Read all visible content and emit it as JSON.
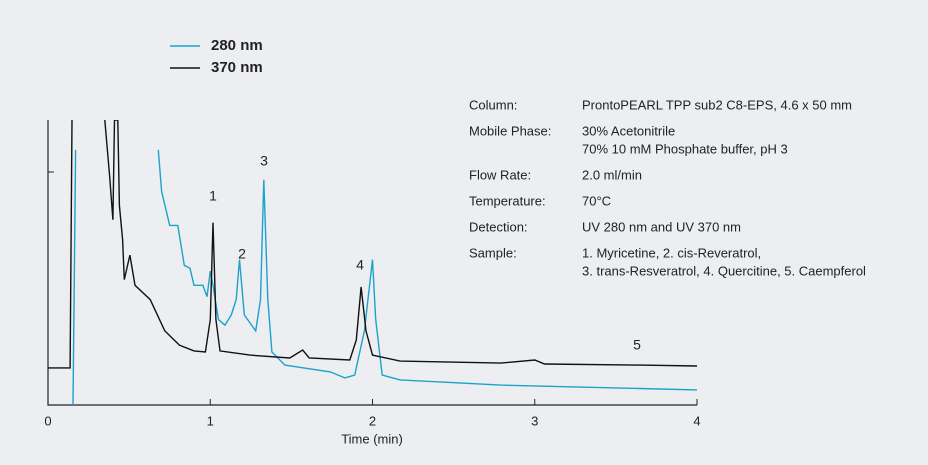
{
  "chart_data": {
    "type": "line",
    "x_label": "Time (min)",
    "xlim": [
      0,
      4
    ],
    "xticks": [
      0,
      1,
      2,
      3,
      4
    ],
    "ylim": [
      0,
      100
    ],
    "series": [
      {
        "name": "280 nm",
        "color": "#1ba3c9",
        "x": [
          0.154,
          0.17,
          null,
          0.68,
          0.7,
          0.75,
          0.8,
          0.84,
          0.875,
          0.9,
          0.955,
          0.98,
          1.0,
          1.017,
          1.05,
          1.09,
          1.13,
          1.16,
          1.18,
          1.21,
          1.28,
          1.31,
          1.33,
          1.355,
          1.38,
          1.46,
          1.74,
          1.83,
          1.89,
          1.95,
          2.0,
          2.02,
          2.06,
          2.17,
          2.79,
          4.0
        ],
        "values": [
          0,
          89.5,
          null,
          89.5,
          75,
          63,
          63,
          49,
          48,
          42,
          42,
          38,
          47,
          42,
          30,
          28,
          31.6,
          37,
          51,
          31.6,
          26,
          37,
          79,
          37,
          18.6,
          14,
          11.6,
          9.5,
          10.5,
          26,
          51,
          30,
          10.5,
          8.8,
          7,
          5.3
        ]
      },
      {
        "name": "370 nm",
        "color": "#111111",
        "x": [
          0,
          0.136,
          0.148,
          null,
          0.35,
          0.38,
          0.4,
          0.41,
          0.43,
          0.44,
          0.46,
          0.47,
          0.505,
          0.536,
          0.63,
          0.72,
          0.81,
          0.9,
          0.97,
          1.0,
          1.017,
          1.035,
          1.06,
          1.245,
          1.49,
          1.57,
          1.61,
          1.86,
          1.9,
          1.93,
          1.96,
          2.0,
          2.17,
          2.79,
          3.0,
          3.06,
          3.65,
          4.0
        ],
        "values": [
          13,
          13,
          100,
          null,
          100,
          80,
          65,
          100,
          100,
          70,
          58,
          44,
          52.6,
          42,
          37,
          26,
          21,
          19,
          18.6,
          30,
          64,
          30,
          19,
          17.5,
          16.5,
          19.3,
          16.5,
          15.8,
          22.8,
          41.4,
          26,
          17.5,
          15.4,
          14.7,
          15.8,
          14.4,
          14,
          13.7
        ]
      }
    ],
    "annotations": [
      "1",
      "2",
      "3",
      "4",
      "5"
    ]
  },
  "info": [
    {
      "label": "Column:",
      "lines": [
        "ProntoPEARL TPP sub2 C8-EPS, 4.6 x 50 mm"
      ]
    },
    {
      "label": "Mobile Phase:",
      "lines": [
        "30% Acetonitrile",
        "70% 10 mM Phosphate buffer, pH 3"
      ]
    },
    {
      "label": "Flow Rate:",
      "lines": [
        "2.0 ml/min"
      ]
    },
    {
      "label": "Temperature:",
      "lines": [
        "70°C"
      ]
    },
    {
      "label": "Detection:",
      "lines": [
        "UV 280 nm and UV 370 nm"
      ]
    },
    {
      "label": "Sample:",
      "lines": [
        "1. Myricetine,  2. cis-Reveratrol,",
        "3. trans-Resveratrol, 4. Quercitine, 5. Caempferol"
      ]
    }
  ]
}
